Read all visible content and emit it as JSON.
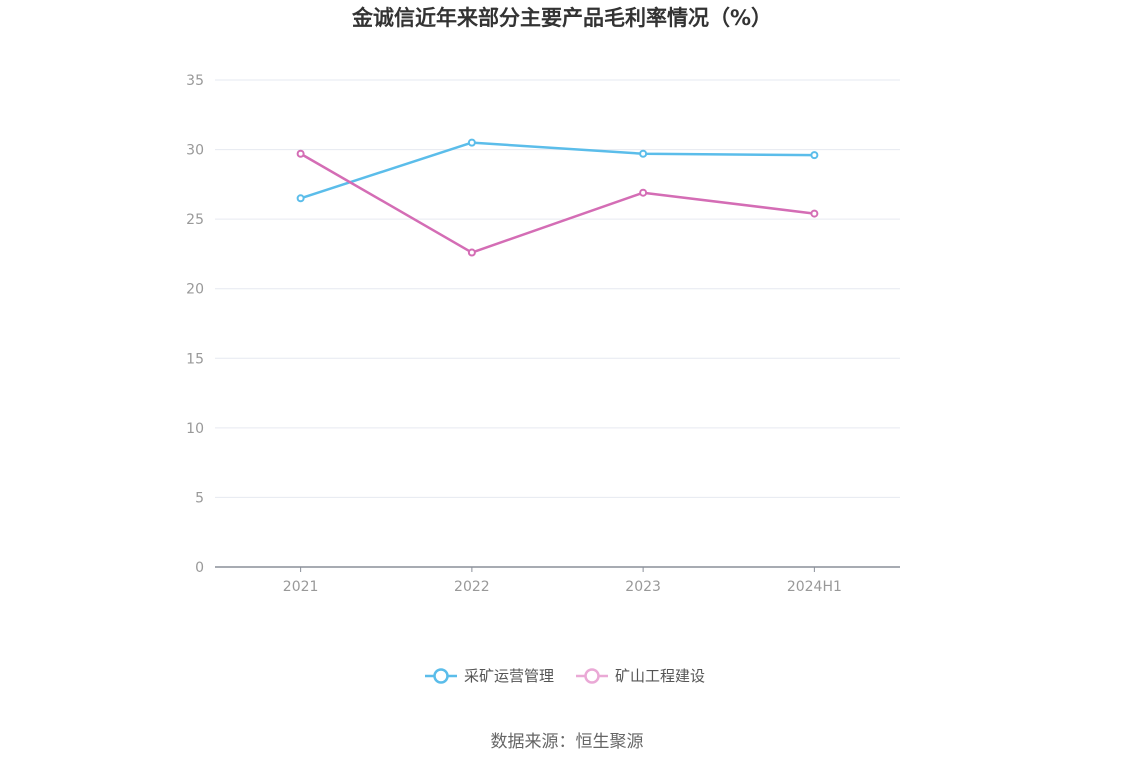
{
  "chart_data": {
    "type": "line",
    "title": "金诚信近年来部分主要产品毛利率情况（%）",
    "categories": [
      "2021",
      "2022",
      "2023",
      "2024H1"
    ],
    "ylim": [
      0,
      35
    ],
    "yticks": [
      0,
      5,
      10,
      15,
      20,
      25,
      30,
      35
    ],
    "grid": true,
    "legend_position": "bottom-center",
    "series": [
      {
        "name": "采矿运营管理",
        "color": "#5bbdea",
        "values": [
          26.5,
          30.5,
          29.7,
          29.6
        ]
      },
      {
        "name": "矿山工程建设",
        "color": "#d46db5",
        "legend_color": "#eaa9d6",
        "values": [
          29.7,
          22.6,
          26.9,
          25.4
        ]
      }
    ]
  },
  "source": "数据来源：恒生聚源"
}
